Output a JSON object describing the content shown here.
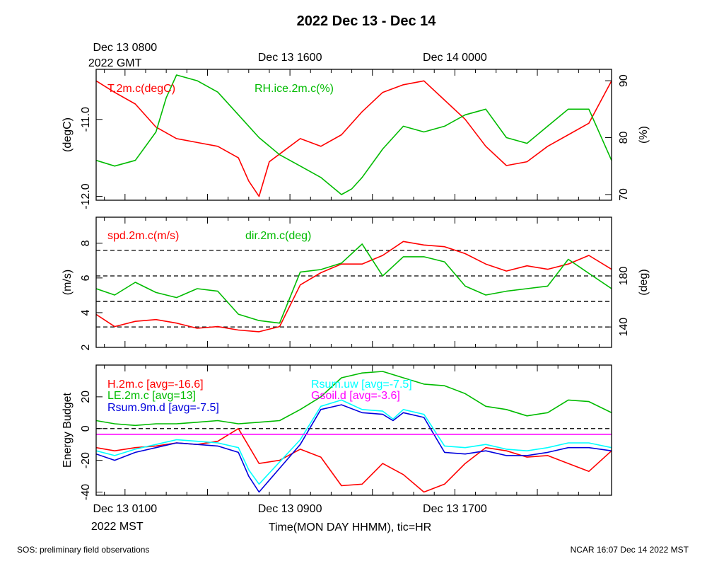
{
  "page": {
    "title": "2022 Dec 13 - Dec 14",
    "footer_left": "SOS: preliminary field observations",
    "footer_right": "NCAR 16:07 Dec 14 2022 MST"
  },
  "time_axis": {
    "top_labels": [
      {
        "hour": 0,
        "line1": "Dec 13 0800",
        "line2": "2022 GMT"
      },
      {
        "hour": 8,
        "line1": "Dec 13 1600",
        "line2": ""
      },
      {
        "hour": 16,
        "line1": "Dec 14 0000",
        "line2": ""
      }
    ],
    "bottom_labels": [
      {
        "hour": 0,
        "line1": "Dec 13 0100",
        "line2": "2022 MST"
      },
      {
        "hour": 8,
        "line1": "Dec 13 0900",
        "line2": ""
      },
      {
        "hour": 16,
        "line1": "Dec 13 1700",
        "line2": ""
      }
    ],
    "xlabel": "Time(MON DAY HHMM), tic=HR",
    "major_ticks_hours": [
      0,
      4,
      8,
      12,
      16,
      20
    ],
    "hour_range": [
      -1.4,
      23.6
    ]
  },
  "chart_data": [
    {
      "id": "panel1",
      "type": "line",
      "x_units": "hours since Dec 13 0800 GMT",
      "ylabel_left": "(degC)",
      "ylabel_right": "(%)",
      "ylim_left": [
        -12.05,
        -10.35
      ],
      "yticks_left": [
        -12.0,
        -11.0
      ],
      "yticks_left_labels": [
        "-12.0",
        "-11.0"
      ],
      "ylim_right": [
        69,
        92
      ],
      "yticks_right": [
        70,
        80,
        90
      ],
      "yticks_right_labels": [
        "70",
        "80",
        "90"
      ],
      "series": [
        {
          "name": "T.2m.c(degC)",
          "axis": "left",
          "color": "#ff0000",
          "x": [
            -1.4,
            -0.5,
            0.5,
            1.5,
            2.5,
            3.5,
            4.5,
            5.5,
            6.0,
            6.5,
            7.0,
            7.5,
            8.5,
            9.5,
            10.5,
            11.5,
            12.5,
            13.5,
            14.5,
            15.5,
            16.5,
            17.5,
            18.5,
            19.5,
            20.5,
            21.5,
            22.5,
            23.6
          ],
          "values": [
            -10.5,
            -10.65,
            -10.8,
            -11.1,
            -11.25,
            -11.3,
            -11.35,
            -11.5,
            -11.8,
            -12.0,
            -11.55,
            -11.45,
            -11.25,
            -11.35,
            -11.2,
            -10.9,
            -10.65,
            -10.55,
            -10.5,
            -10.75,
            -11.0,
            -11.35,
            -11.6,
            -11.55,
            -11.35,
            -11.2,
            -11.05,
            -10.5
          ]
        },
        {
          "name": "RH.ice.2m.c(%)",
          "axis": "right",
          "color": "#00bb00",
          "x": [
            -1.4,
            -0.5,
            0.5,
            1.5,
            2.0,
            2.5,
            3.5,
            4.5,
            5.5,
            6.5,
            7.5,
            8.5,
            9.5,
            10.5,
            11.0,
            11.5,
            12.5,
            13.5,
            14.5,
            15.5,
            16.5,
            17.5,
            18.5,
            19.5,
            20.5,
            21.5,
            22.5,
            23.6
          ],
          "values": [
            76,
            75,
            76,
            81,
            87,
            91,
            90,
            88,
            84,
            80,
            77,
            75,
            73,
            70,
            71,
            73,
            78,
            82,
            81,
            82,
            84,
            85,
            80,
            79,
            82,
            85,
            85,
            76
          ]
        }
      ],
      "legend": [
        {
          "series": "T.2m.c(degC)",
          "color": "#ff0000"
        },
        {
          "series": "RH.ice.2m.c(%)",
          "color": "#00bb00"
        }
      ]
    },
    {
      "id": "panel2",
      "type": "line",
      "x_units": "hours since Dec 13 0800 GMT",
      "ylabel_left": "(m/s)",
      "ylabel_right": "(deg)",
      "ylim_left": [
        2,
        9.5
      ],
      "yticks_left": [
        2,
        4,
        6,
        8
      ],
      "yticks_left_labels": [
        "2",
        "4",
        "6",
        "8"
      ],
      "ylim_right": [
        124,
        226
      ],
      "yticks_right": [
        140,
        180
      ],
      "yticks_right_labels": [
        "140",
        "180"
      ],
      "dashed_lines_right": [
        140,
        160,
        180,
        200
      ],
      "series": [
        {
          "name": "spd.2m.c(m/s)",
          "axis": "left",
          "color": "#ff0000",
          "x": [
            -1.4,
            -0.5,
            0.5,
            1.5,
            2.5,
            3.5,
            4.5,
            5.5,
            6.5,
            7.5,
            8.5,
            9.5,
            10.5,
            11.5,
            12.5,
            13.5,
            14.5,
            15.5,
            16.5,
            17.5,
            18.5,
            19.5,
            20.5,
            21.5,
            22.5,
            23.6
          ],
          "values": [
            3.9,
            3.2,
            3.5,
            3.6,
            3.4,
            3.1,
            3.2,
            3.0,
            2.9,
            3.2,
            5.6,
            6.3,
            6.8,
            6.8,
            7.3,
            8.1,
            7.9,
            7.8,
            7.4,
            6.8,
            6.4,
            6.7,
            6.5,
            6.8,
            7.3,
            6.5
          ]
        },
        {
          "name": "dir.2m.c(deg)",
          "axis": "right",
          "color": "#00bb00",
          "x": [
            -1.4,
            -0.5,
            0.5,
            1.5,
            2.5,
            3.5,
            4.5,
            5.5,
            6.5,
            7.5,
            8.5,
            9.5,
            10.5,
            11.5,
            12.5,
            13.5,
            14.5,
            15.5,
            16.5,
            17.5,
            18.5,
            19.5,
            20.5,
            21.5,
            22.5,
            23.6
          ],
          "values": [
            170,
            165,
            175,
            167,
            163,
            170,
            168,
            150,
            145,
            143,
            183,
            185,
            190,
            205,
            180,
            195,
            195,
            191,
            172,
            165,
            168,
            170,
            172,
            193,
            182,
            170
          ]
        }
      ],
      "legend": [
        {
          "series": "spd.2m.c(m/s)",
          "color": "#ff0000"
        },
        {
          "series": "dir.2m.c(deg)",
          "color": "#00bb00"
        }
      ]
    },
    {
      "id": "panel3",
      "type": "line",
      "x_units": "hours since Dec 13 0800 GMT",
      "ylabel_left": "Energy Budget",
      "ylim_left": [
        -42,
        40
      ],
      "yticks_left": [
        -40,
        -20,
        0,
        20
      ],
      "yticks_left_labels": [
        "-40",
        "-20",
        "0",
        "20"
      ],
      "dashed_lines_left": [
        0
      ],
      "series": [
        {
          "name": "H.2m.c",
          "avg_label": "[avg=-16.6]",
          "color": "#ff0000",
          "x": [
            -1.4,
            -0.5,
            0.5,
            1.5,
            2.5,
            3.5,
            4.5,
            5.5,
            6.5,
            7.5,
            8.5,
            9.5,
            10.5,
            11.5,
            12.5,
            13.5,
            14.5,
            15.5,
            16.5,
            17.5,
            18.5,
            19.5,
            20.5,
            21.5,
            22.5,
            23.6
          ],
          "values": [
            -12,
            -14,
            -12,
            -11,
            -9,
            -10,
            -8,
            0,
            -22,
            -20,
            -13,
            -18,
            -36,
            -35,
            -22,
            -29,
            -40,
            -35,
            -22,
            -12,
            -14,
            -18,
            -17,
            -22,
            -27,
            -14
          ]
        },
        {
          "name": "LE.2m.c",
          "avg_label": "[avg=13]",
          "color": "#00bb00",
          "x": [
            -1.4,
            -0.5,
            0.5,
            1.5,
            2.5,
            3.5,
            4.5,
            5.5,
            6.5,
            7.5,
            8.5,
            9.5,
            10.5,
            11.5,
            12.5,
            13.5,
            14.5,
            15.5,
            16.5,
            17.5,
            18.5,
            19.5,
            20.5,
            21.5,
            22.5,
            23.6
          ],
          "values": [
            5,
            3,
            2,
            3,
            3,
            4,
            5,
            3,
            4,
            5,
            12,
            20,
            32,
            35,
            36,
            32,
            28,
            27,
            22,
            14,
            12,
            8,
            10,
            18,
            17,
            10
          ]
        },
        {
          "name": "Rsum.9m.d",
          "avg_label": "[avg=-7.5]",
          "color": "#0000dd",
          "x": [
            -1.4,
            -0.5,
            0.5,
            1.5,
            2.5,
            3.5,
            4.5,
            5.5,
            6.0,
            6.5,
            7.5,
            8.5,
            9.5,
            10.5,
            11.5,
            12.5,
            13.0,
            13.5,
            14.5,
            15.5,
            16.5,
            17.5,
            18.5,
            19.5,
            20.5,
            21.5,
            22.5,
            23.6
          ],
          "values": [
            -16,
            -20,
            -15,
            -12,
            -9,
            -10,
            -11,
            -15,
            -30,
            -40,
            -25,
            -10,
            12,
            15,
            10,
            9,
            5,
            10,
            7,
            -15,
            -16,
            -14,
            -17,
            -17,
            -15,
            -12,
            -12,
            -14
          ]
        },
        {
          "name": "Rsum.uw",
          "avg_label": "[avg=-7.5]",
          "color": "#00ffff",
          "x": [
            -1.4,
            -0.5,
            0.5,
            1.5,
            2.5,
            3.5,
            4.5,
            5.5,
            6.0,
            6.5,
            7.5,
            8.5,
            9.5,
            10.5,
            11.5,
            12.5,
            13.0,
            13.5,
            14.5,
            15.5,
            16.5,
            17.5,
            18.5,
            19.5,
            20.5,
            21.5,
            22.5,
            23.6
          ],
          "values": [
            -14,
            -17,
            -13,
            -10,
            -7,
            -8,
            -9,
            -12,
            -26,
            -35,
            -21,
            -7,
            14,
            18,
            12,
            11,
            6,
            12,
            9,
            -11,
            -12,
            -10,
            -13,
            -14,
            -12,
            -9,
            -9,
            -12
          ]
        },
        {
          "name": "Gsoil.d",
          "avg_label": "[avg=-3.6]",
          "color": "#ff00ff",
          "x": [
            -1.4,
            23.6
          ],
          "values": [
            -3.6,
            -3.6
          ]
        }
      ],
      "legend": [
        {
          "series": "H.2m.c",
          "label": "H.2m.c [avg=-16.6]",
          "color": "#ff0000"
        },
        {
          "series": "LE.2m.c",
          "label": "LE.2m.c [avg=13]",
          "color": "#00bb00"
        },
        {
          "series": "Rsum.9m.d",
          "label": "Rsum.9m.d [avg=-7.5]",
          "color": "#0000dd"
        },
        {
          "series": "Rsum.uw",
          "label": "Rsum.uw [avg=-7.5]",
          "color": "#00ffff"
        },
        {
          "series": "Gsoil.d",
          "label": "Gsoil.d [avg=-3.6]",
          "color": "#ff00ff"
        }
      ]
    }
  ]
}
